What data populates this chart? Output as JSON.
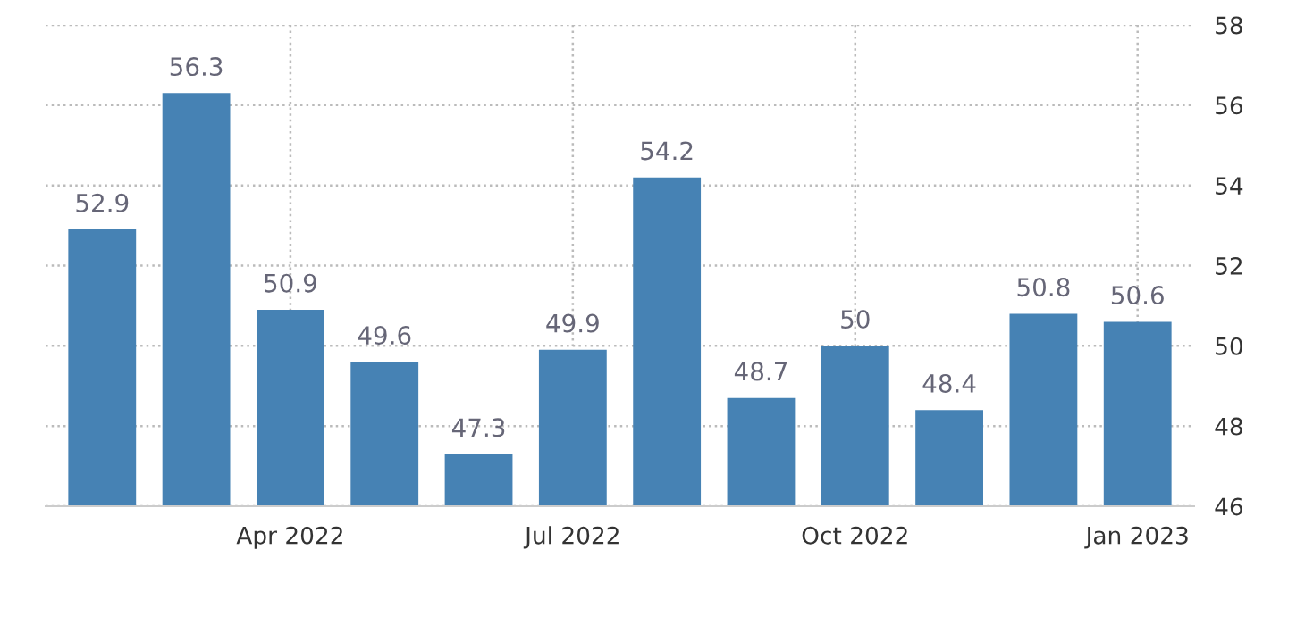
{
  "chart_data": {
    "type": "bar",
    "categories": [
      null,
      null,
      "Apr 2022",
      null,
      null,
      "Jul 2022",
      null,
      null,
      "Oct 2022",
      null,
      null,
      "Jan 2023"
    ],
    "values": [
      52.9,
      56.3,
      50.9,
      49.6,
      47.3,
      49.9,
      54.2,
      48.7,
      50,
      48.4,
      50.8,
      50.6
    ],
    "color": "#4682b4",
    "ylim": [
      46,
      58
    ],
    "yticks": [
      46,
      48,
      50,
      52,
      54,
      56,
      58
    ],
    "grid": true,
    "data_labels": true
  }
}
